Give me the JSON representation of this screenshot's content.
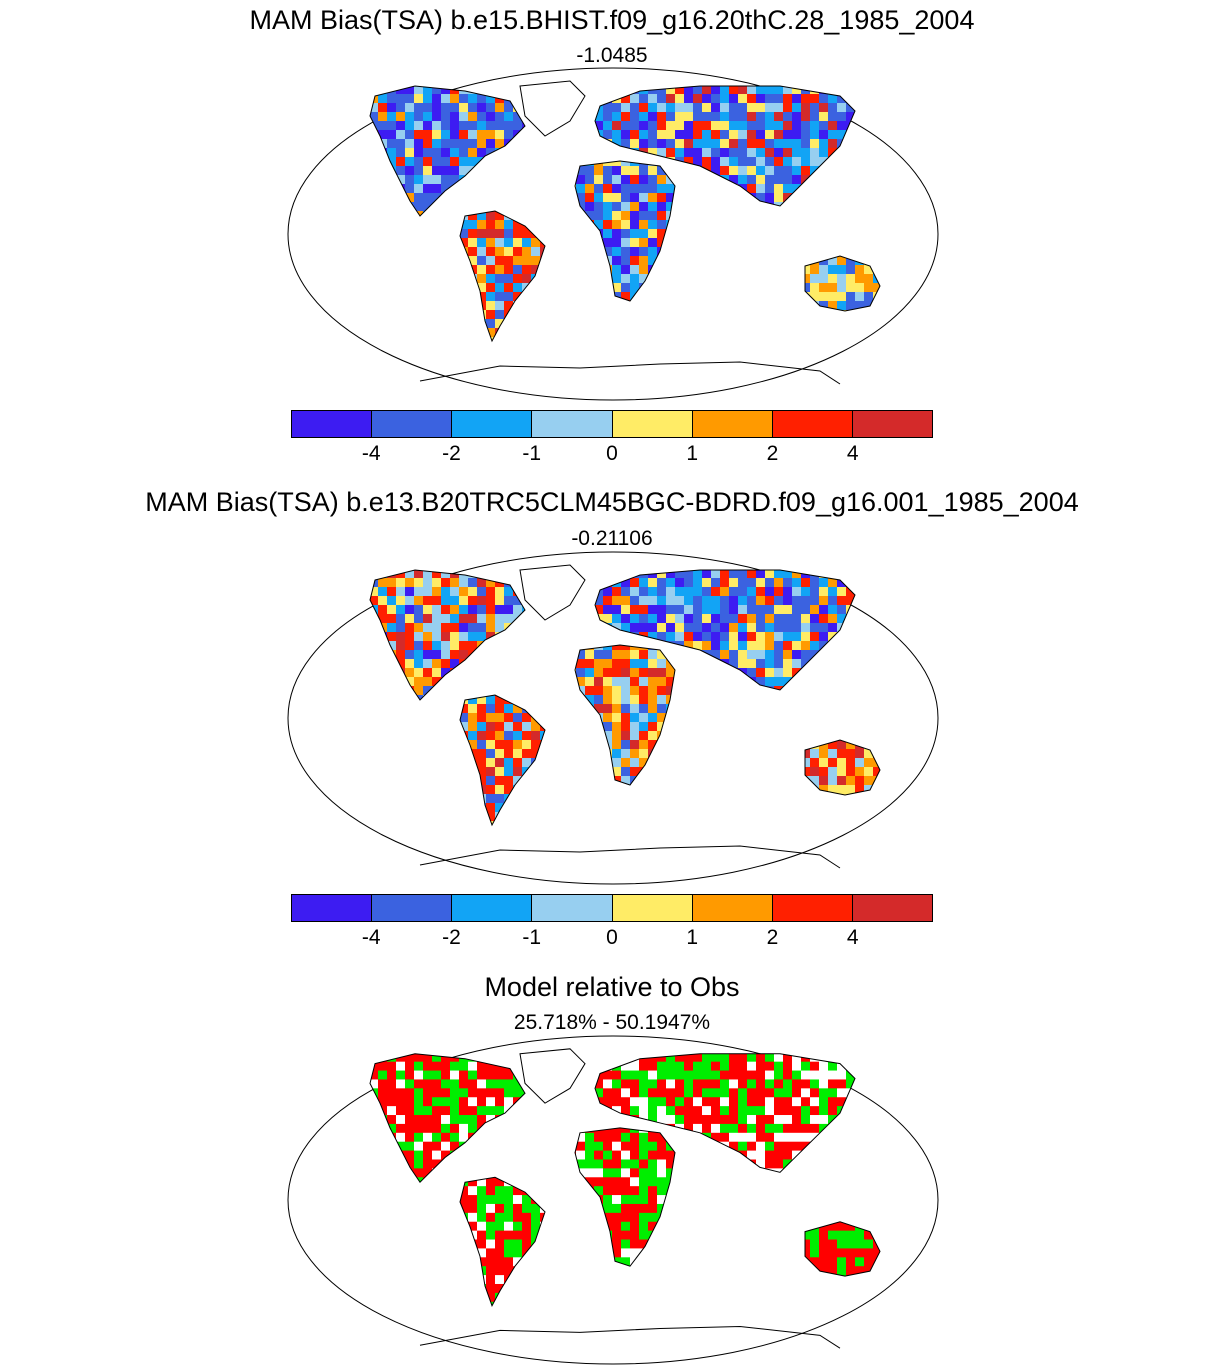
{
  "panels": [
    {
      "title": "MAM Bias(TSA) b.e15.BHIST.f09_g16.20thC.28_1985_2004",
      "subtitle": "-1.0485",
      "map_type": "bias",
      "regions": [
        {
          "name": "north-america",
          "palette": [
            0,
            1,
            2,
            1,
            3,
            1,
            0,
            1,
            2,
            4,
            6,
            5
          ]
        },
        {
          "name": "south-america",
          "palette": [
            2,
            3,
            6,
            6,
            5,
            1,
            6,
            4,
            7,
            2
          ]
        },
        {
          "name": "europe-asia",
          "palette": [
            1,
            2,
            0,
            1,
            2,
            6,
            7,
            3,
            4,
            1,
            0
          ]
        },
        {
          "name": "africa",
          "palette": [
            1,
            2,
            3,
            4,
            1,
            6,
            5,
            0,
            2,
            1
          ]
        },
        {
          "name": "australia",
          "palette": [
            3,
            4,
            2,
            5,
            3,
            1,
            4
          ]
        }
      ]
    },
    {
      "title": "MAM Bias(TSA) b.e13.B20TRC5CLM45BGC-BDRD.f09_g16.001_1985_2004",
      "subtitle": "-0.21106",
      "map_type": "bias",
      "regions": [
        {
          "name": "north-america",
          "palette": [
            6,
            5,
            3,
            2,
            6,
            1,
            0,
            4,
            3,
            7
          ]
        },
        {
          "name": "south-america",
          "palette": [
            2,
            6,
            5,
            7,
            3,
            4,
            6,
            1
          ]
        },
        {
          "name": "europe-asia",
          "palette": [
            1,
            2,
            0,
            3,
            4,
            1,
            2,
            0,
            5,
            1,
            6
          ]
        },
        {
          "name": "africa",
          "palette": [
            5,
            6,
            2,
            3,
            7,
            5,
            4,
            1,
            6
          ]
        },
        {
          "name": "australia",
          "palette": [
            6,
            7,
            5,
            4,
            6,
            3
          ]
        }
      ]
    },
    {
      "title": "Model relative to Obs",
      "subtitle": "25.718% - 50.1947%",
      "map_type": "relative",
      "regions": [
        {
          "name": "north-america",
          "palette": [
            8,
            9,
            10,
            8,
            9,
            8
          ]
        },
        {
          "name": "south-america",
          "palette": [
            9,
            8,
            10,
            9,
            8
          ]
        },
        {
          "name": "europe-asia",
          "palette": [
            8,
            10,
            9,
            8,
            9,
            10,
            8
          ]
        },
        {
          "name": "africa",
          "palette": [
            8,
            9,
            8,
            10,
            9
          ]
        },
        {
          "name": "australia",
          "palette": [
            8,
            9,
            8,
            9
          ]
        }
      ]
    }
  ],
  "colorbar": {
    "colors": [
      "#3d1cf2",
      "#3b62e0",
      "#12a4f5",
      "#97cff0",
      "#ffec66",
      "#ff9a00",
      "#ff2000",
      "#d42a2a"
    ],
    "labels": [
      "-4",
      "-2",
      "-1",
      "0",
      "1",
      "2",
      "4"
    ]
  },
  "relative_colors": [
    "#ff0000",
    "#00ee00",
    "#ffffff"
  ],
  "colors": {
    "ocean": "#ffffff",
    "coast": "#000000",
    "frame": "#000000"
  }
}
